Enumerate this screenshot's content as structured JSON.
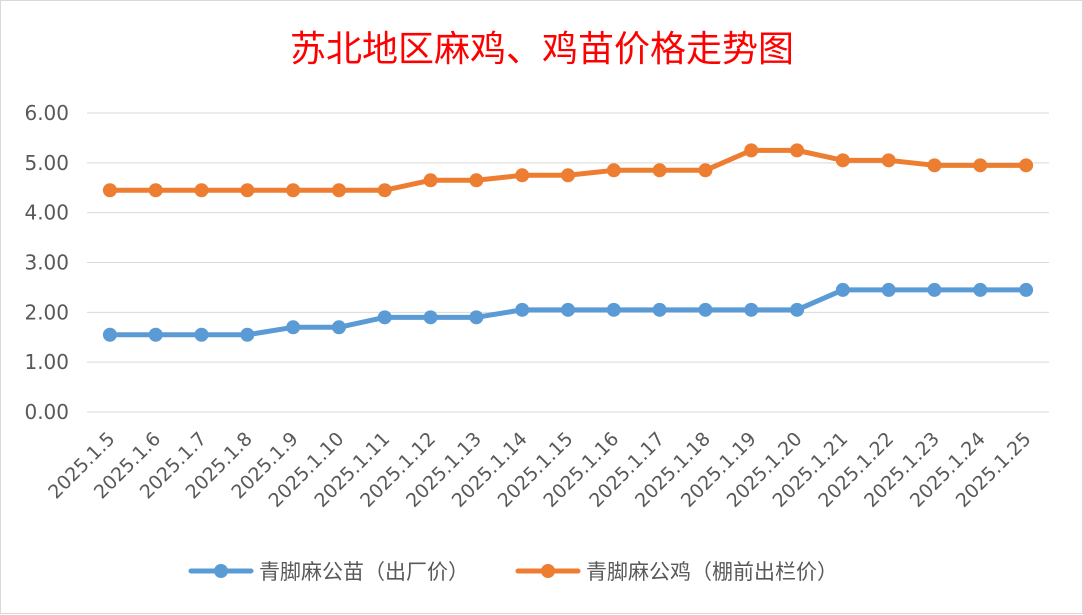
{
  "chart_data": {
    "type": "line",
    "title": "苏北地区麻鸡、鸡苗价格走势图",
    "categories": [
      "2025.1.5",
      "2025.1.6",
      "2025.1.7",
      "2025.1.8",
      "2025.1.9",
      "2025.1.10",
      "2025.1.11",
      "2025.1.12",
      "2025.1.13",
      "2025.1.14",
      "2025.1.15",
      "2025.1.16",
      "2025.1.17",
      "2025.1.18",
      "2025.1.19",
      "2025.1.20",
      "2025.1.21",
      "2025.1.22",
      "2025.1.23",
      "2025.1.24",
      "2025.1.25"
    ],
    "series": [
      {
        "name": "青脚麻公苗（出厂价）",
        "color": "#5b9bd5",
        "values": [
          1.55,
          1.55,
          1.55,
          1.55,
          1.7,
          1.7,
          1.9,
          1.9,
          1.9,
          2.05,
          2.05,
          2.05,
          2.05,
          2.05,
          2.05,
          2.05,
          2.45,
          2.45,
          2.45,
          2.45,
          2.45
        ]
      },
      {
        "name": "青脚麻公鸡（棚前出栏价）",
        "color": "#ed7d31",
        "values": [
          4.45,
          4.45,
          4.45,
          4.45,
          4.45,
          4.45,
          4.45,
          4.65,
          4.65,
          4.75,
          4.75,
          4.85,
          4.85,
          4.85,
          5.25,
          5.25,
          5.05,
          5.05,
          4.95,
          4.95,
          4.95
        ]
      }
    ],
    "yticks": [
      "0.00",
      "1.00",
      "2.00",
      "3.00",
      "4.00",
      "5.00",
      "6.00"
    ],
    "ylim": [
      0,
      6
    ],
    "xlabel": "",
    "ylabel": "",
    "grid": true,
    "legend_position": "bottom"
  }
}
